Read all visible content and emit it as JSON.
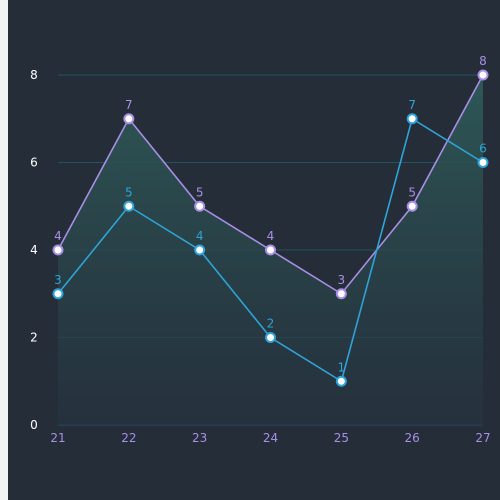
{
  "chart_data": {
    "type": "line",
    "x": [
      21,
      22,
      23,
      24,
      25,
      26,
      27
    ],
    "ylim": [
      0,
      8
    ],
    "yticks": [
      0,
      2,
      4,
      6,
      8
    ],
    "grid": true,
    "series": [
      {
        "values": [
          4,
          7,
          5,
          4,
          3,
          5,
          8
        ],
        "color": "#a98ee6",
        "filled": true
      },
      {
        "values": [
          3,
          5,
          4,
          2,
          1,
          7,
          6
        ],
        "color": "#2ea3d8",
        "filled": false
      }
    ]
  },
  "colors": {
    "background": "#242d38",
    "grid": "#1f5560",
    "area_top": "#2e5a58",
    "area_bottom": "#263440"
  }
}
